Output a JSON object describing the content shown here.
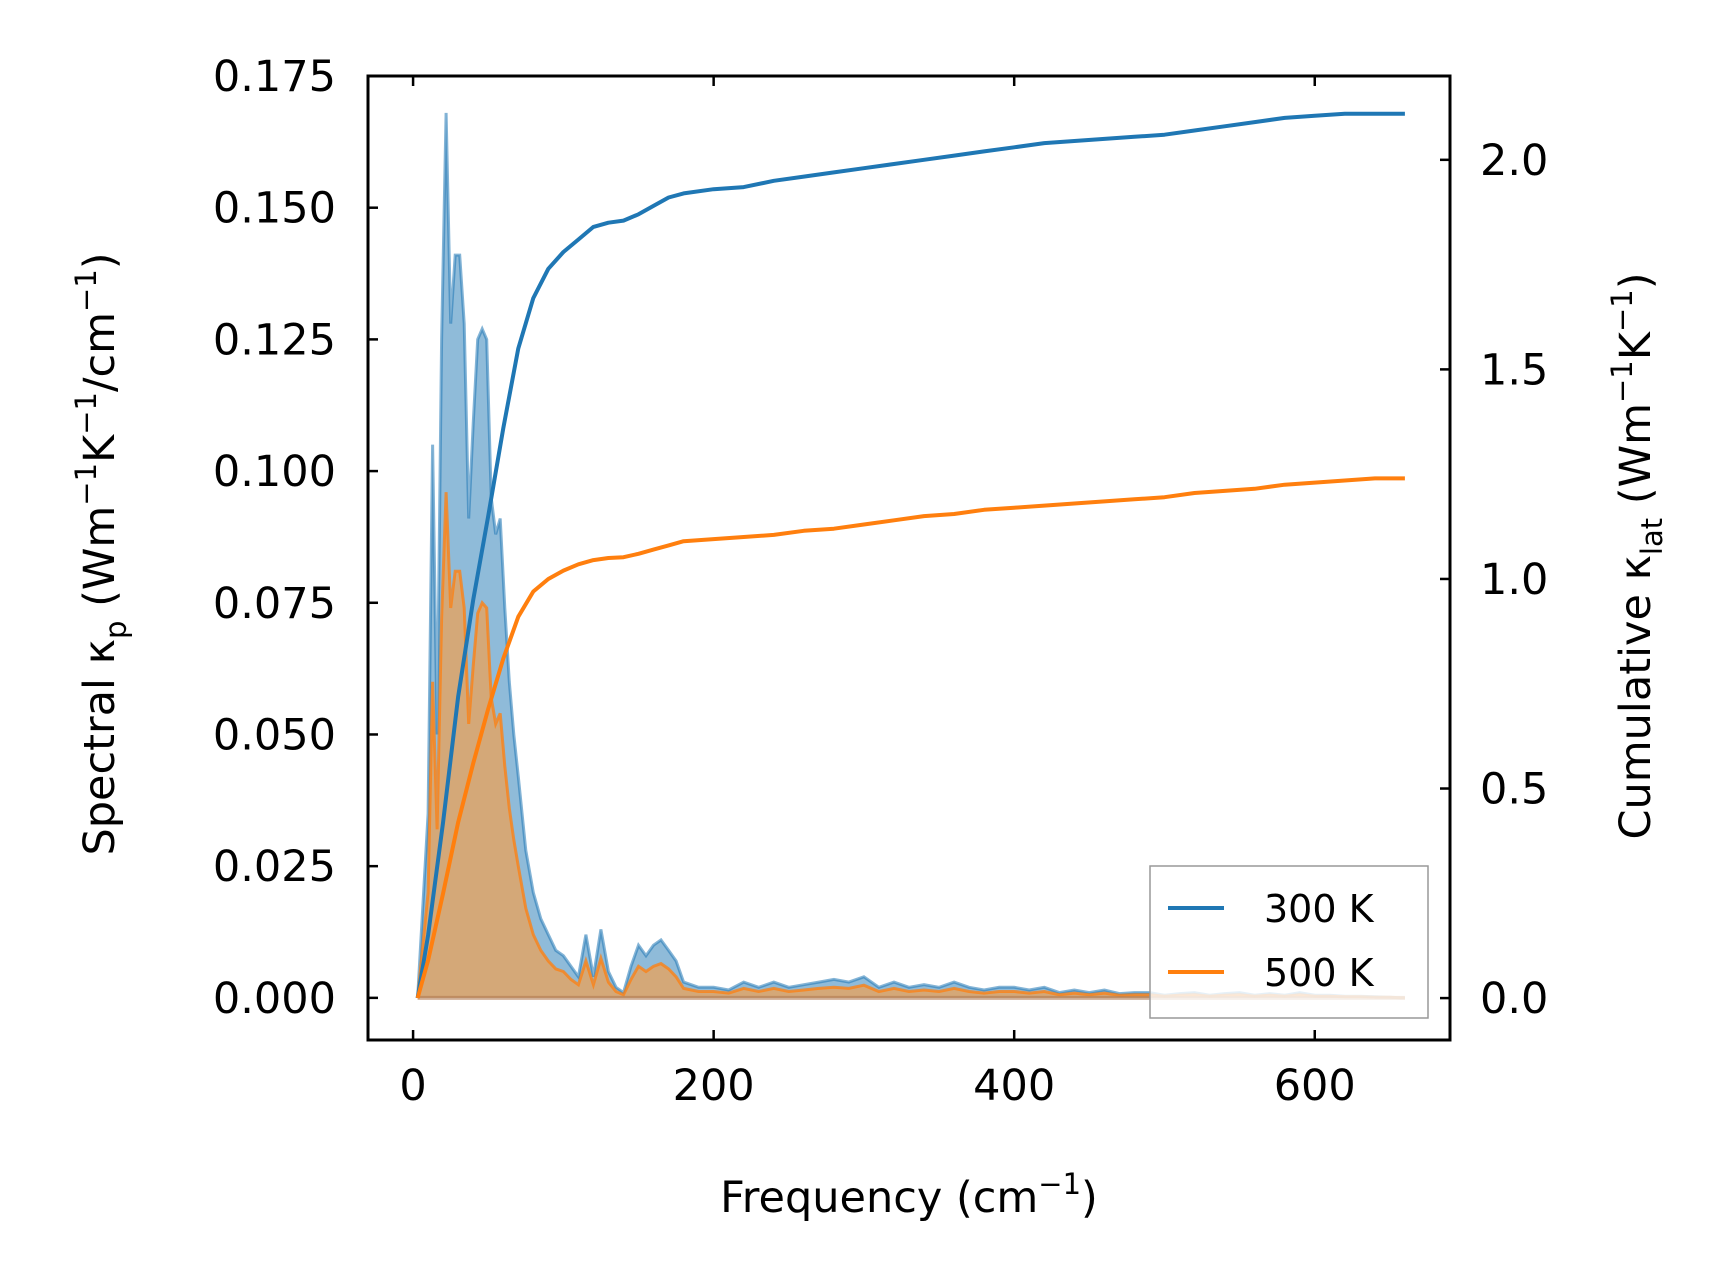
{
  "chart_data": {
    "type": "line",
    "title": "",
    "xlabel": "Frequency (cm⁻¹)",
    "ylabel_left": "Spectral κₚ (Wm⁻¹K⁻¹/cm⁻¹)",
    "ylabel_right": "Cumulative κ_lat (Wm⁻¹K⁻¹)",
    "xlabel_parts": {
      "main": "Frequency (cm",
      "sup": "−1",
      "close": ")"
    },
    "ylabel_left_parts": {
      "main": "Spectral κ",
      "sub": "p",
      "rest1": " (Wm",
      "sup1": "−1",
      "rest2": "K",
      "sup2": "−1",
      "rest3": "/cm",
      "sup3": "−1",
      "close": ")"
    },
    "ylabel_right_parts": {
      "main": "Cumulative κ",
      "sub": "lat",
      "rest1": " (Wm",
      "sup1": "−1",
      "rest2": "K",
      "sup2": "−1",
      "close": ")"
    },
    "xlim": [
      -30,
      690
    ],
    "ylim_left": [
      -0.008,
      0.175
    ],
    "ylim_right": [
      -0.1,
      2.2
    ],
    "x_ticks": [
      0,
      200,
      400,
      600
    ],
    "x_tick_labels": [
      "0",
      "200",
      "400",
      "600"
    ],
    "y_left_ticks": [
      0,
      0.025,
      0.05,
      0.075,
      0.1,
      0.125,
      0.15,
      0.175
    ],
    "y_left_tick_labels": [
      "0.000",
      "0.025",
      "0.050",
      "0.075",
      "0.100",
      "0.125",
      "0.150",
      "0.175"
    ],
    "y_right_ticks": [
      0,
      0.5,
      1.0,
      1.5,
      2.0
    ],
    "y_right_tick_labels": [
      "0.0",
      "0.5",
      "1.0",
      "1.5",
      "2.0"
    ],
    "legend_position": "lower-right",
    "legend": [
      "300 K",
      "500 K"
    ],
    "colors": {
      "300K": "#1f77b4",
      "500K": "#ff7f0e",
      "300K_fill": "#1f77b4",
      "500K_fill": "#e0a566"
    },
    "spectral_series": [
      {
        "name": "300 K",
        "axis": "left",
        "x": [
          3,
          10,
          13,
          16,
          19,
          22,
          25,
          28,
          31,
          34,
          37,
          40,
          43,
          46,
          49,
          52,
          55,
          58,
          61,
          64,
          67,
          70,
          75,
          80,
          85,
          90,
          95,
          100,
          105,
          110,
          115,
          120,
          125,
          130,
          135,
          140,
          145,
          150,
          155,
          160,
          165,
          170,
          175,
          180,
          190,
          200,
          210,
          220,
          230,
          240,
          250,
          260,
          270,
          280,
          290,
          300,
          310,
          320,
          330,
          340,
          350,
          360,
          370,
          380,
          390,
          400,
          410,
          420,
          430,
          440,
          450,
          460,
          470,
          480,
          490,
          500,
          510,
          520,
          530,
          540,
          550,
          560,
          570,
          580,
          590,
          600,
          610,
          620,
          630,
          640,
          650,
          660
        ],
        "values": [
          0.0,
          0.035,
          0.105,
          0.05,
          0.125,
          0.168,
          0.128,
          0.141,
          0.141,
          0.128,
          0.091,
          0.109,
          0.125,
          0.127,
          0.125,
          0.095,
          0.088,
          0.091,
          0.074,
          0.06,
          0.05,
          0.042,
          0.028,
          0.02,
          0.015,
          0.012,
          0.009,
          0.008,
          0.006,
          0.004,
          0.012,
          0.004,
          0.013,
          0.005,
          0.002,
          0.001,
          0.006,
          0.01,
          0.008,
          0.01,
          0.011,
          0.009,
          0.007,
          0.003,
          0.002,
          0.002,
          0.0015,
          0.003,
          0.002,
          0.003,
          0.002,
          0.0025,
          0.003,
          0.0035,
          0.003,
          0.004,
          0.002,
          0.003,
          0.002,
          0.0025,
          0.002,
          0.003,
          0.002,
          0.0015,
          0.002,
          0.002,
          0.0015,
          0.002,
          0.001,
          0.0015,
          0.001,
          0.0015,
          0.0008,
          0.001,
          0.001,
          0.0005,
          0.0008,
          0.001,
          0.0005,
          0.0008,
          0.001,
          0.0005,
          0.0008,
          0.0005,
          0.001,
          0.0005,
          0.0005,
          0.0003,
          0.0003,
          0.0002,
          0.0001,
          0.0
        ]
      },
      {
        "name": "500 K",
        "axis": "left",
        "x": [
          3,
          10,
          13,
          16,
          19,
          22,
          25,
          28,
          31,
          34,
          37,
          40,
          43,
          46,
          49,
          52,
          55,
          58,
          61,
          64,
          67,
          70,
          75,
          80,
          85,
          90,
          95,
          100,
          105,
          110,
          115,
          120,
          125,
          130,
          135,
          140,
          145,
          150,
          155,
          160,
          165,
          170,
          175,
          180,
          190,
          200,
          210,
          220,
          230,
          240,
          250,
          260,
          270,
          280,
          290,
          300,
          310,
          320,
          330,
          340,
          350,
          360,
          370,
          380,
          390,
          400,
          410,
          420,
          430,
          440,
          450,
          460,
          470,
          480,
          490,
          500,
          510,
          520,
          530,
          540,
          550,
          560,
          570,
          580,
          590,
          600,
          610,
          620,
          630,
          640,
          650,
          660
        ],
        "values": [
          0.0,
          0.02,
          0.06,
          0.032,
          0.072,
          0.096,
          0.074,
          0.081,
          0.081,
          0.074,
          0.052,
          0.063,
          0.073,
          0.075,
          0.074,
          0.057,
          0.052,
          0.054,
          0.044,
          0.036,
          0.03,
          0.025,
          0.017,
          0.012,
          0.009,
          0.007,
          0.0055,
          0.005,
          0.0035,
          0.0025,
          0.007,
          0.0025,
          0.0075,
          0.003,
          0.0012,
          0.0006,
          0.0035,
          0.006,
          0.005,
          0.006,
          0.0065,
          0.0055,
          0.004,
          0.0018,
          0.0012,
          0.0012,
          0.0009,
          0.0018,
          0.0012,
          0.0018,
          0.0012,
          0.0015,
          0.0018,
          0.002,
          0.0018,
          0.0024,
          0.0012,
          0.0018,
          0.0012,
          0.0015,
          0.0012,
          0.0018,
          0.0012,
          0.0009,
          0.0012,
          0.0012,
          0.0009,
          0.0012,
          0.0006,
          0.0009,
          0.0006,
          0.0009,
          0.0005,
          0.0006,
          0.0006,
          0.0003,
          0.0005,
          0.0006,
          0.0003,
          0.0005,
          0.0006,
          0.0003,
          0.0005,
          0.0003,
          0.0006,
          0.0003,
          0.0003,
          0.0002,
          0.0002,
          0.0001,
          0.0001,
          0.0
        ]
      }
    ],
    "cumulative_series": [
      {
        "name": "300 K",
        "axis": "right",
        "x": [
          3,
          10,
          20,
          30,
          40,
          50,
          60,
          70,
          80,
          90,
          100,
          110,
          120,
          130,
          140,
          150,
          160,
          170,
          180,
          200,
          220,
          240,
          260,
          280,
          300,
          320,
          340,
          360,
          380,
          400,
          420,
          440,
          460,
          480,
          500,
          520,
          540,
          560,
          580,
          600,
          620,
          640,
          660
        ],
        "values": [
          0.0,
          0.15,
          0.42,
          0.72,
          0.95,
          1.15,
          1.36,
          1.55,
          1.67,
          1.74,
          1.78,
          1.81,
          1.84,
          1.85,
          1.855,
          1.87,
          1.89,
          1.91,
          1.92,
          1.93,
          1.935,
          1.95,
          1.96,
          1.97,
          1.98,
          1.99,
          2.0,
          2.01,
          2.02,
          2.03,
          2.04,
          2.045,
          2.05,
          2.055,
          2.06,
          2.07,
          2.08,
          2.09,
          2.1,
          2.105,
          2.11,
          2.11,
          2.11
        ]
      },
      {
        "name": "500 K",
        "axis": "right",
        "x": [
          3,
          10,
          20,
          30,
          40,
          50,
          60,
          70,
          80,
          90,
          100,
          110,
          120,
          130,
          140,
          150,
          160,
          170,
          180,
          200,
          220,
          240,
          260,
          280,
          300,
          320,
          340,
          360,
          380,
          400,
          420,
          440,
          460,
          480,
          500,
          520,
          540,
          560,
          580,
          600,
          620,
          640,
          660
        ],
        "values": [
          0.0,
          0.09,
          0.25,
          0.42,
          0.56,
          0.69,
          0.81,
          0.91,
          0.97,
          1.0,
          1.02,
          1.035,
          1.045,
          1.05,
          1.052,
          1.06,
          1.07,
          1.08,
          1.09,
          1.095,
          1.1,
          1.105,
          1.115,
          1.12,
          1.13,
          1.14,
          1.15,
          1.155,
          1.165,
          1.17,
          1.175,
          1.18,
          1.185,
          1.19,
          1.195,
          1.205,
          1.21,
          1.215,
          1.225,
          1.23,
          1.235,
          1.24,
          1.24
        ]
      }
    ]
  }
}
